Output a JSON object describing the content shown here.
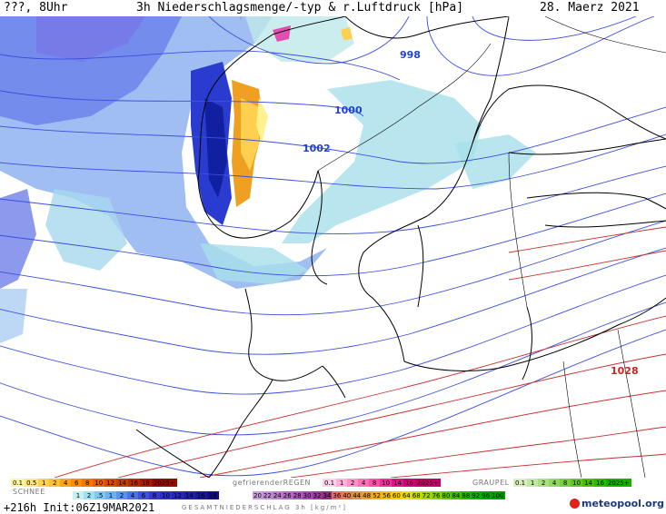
{
  "header": {
    "left": "???, 8Uhr",
    "title": "3h Niederschlagsmenge/-typ & r.Luftdruck [hPa]",
    "date": "28. Maerz 2021"
  },
  "isobar_labels": [
    {
      "text": "998",
      "color": "#2244cc"
    },
    {
      "text": "1000",
      "color": "#2244cc"
    },
    {
      "text": "1002",
      "color": "#2244cc"
    },
    {
      "text": "1028",
      "color": "#cc2222"
    }
  ],
  "legend": {
    "rain_values": [
      "0.1",
      "0.5",
      "1",
      "2",
      "4",
      "6",
      "8",
      "10",
      "12",
      "14",
      "16",
      "18",
      "2025+"
    ],
    "rain_colors": [
      "#fff7a0",
      "#ffe680",
      "#ffd24d",
      "#ffbf33",
      "#ffa31a",
      "#ff8c00",
      "#f07800",
      "#e06400",
      "#d05000",
      "#c04000",
      "#b03000",
      "#a02000",
      "#901000"
    ],
    "freezing_label": "gefrierenderREGEN",
    "freezing_values": [
      "0.1",
      "1",
      "2",
      "4",
      "8",
      "10",
      "14",
      "16",
      "2025+"
    ],
    "freezing_colors": [
      "#ffd0e8",
      "#ffb0d8",
      "#ff90c8",
      "#ff70b8",
      "#ff50a8",
      "#f03098",
      "#e01088",
      "#d00078",
      "#c00068"
    ],
    "graupel_label": "GRAUPEL",
    "graupel_values": [
      "0.1",
      "1",
      "2",
      "4",
      "8",
      "10",
      "14",
      "16",
      "2025+"
    ],
    "graupel_colors": [
      "#d8f0c0",
      "#c0e8a0",
      "#a8e080",
      "#90d860",
      "#78d040",
      "#60c820",
      "#48c000",
      "#30b800",
      "#18b000"
    ],
    "snow_label": "SCHNEE",
    "snow_values": [
      "1",
      "2",
      ".5",
      "1",
      "2",
      "4",
      "6",
      "8",
      "10",
      "12",
      "14",
      "16",
      "18"
    ],
    "snow_colors": [
      "#c8f0f0",
      "#a0e0f0",
      "#80c8f0",
      "#70b0f0",
      "#6090f0",
      "#5070e8",
      "#4050e0",
      "#3838d0",
      "#3030c0",
      "#2828b0",
      "#2020a0",
      "#181890",
      "#101080"
    ],
    "total_values": [
      "20",
      "22",
      "24",
      "26",
      "28",
      "30",
      "32",
      "34",
      "36",
      "40",
      "44",
      "48",
      "52",
      "56",
      "60",
      "64",
      "68",
      "72",
      "76",
      "80",
      "84",
      "88",
      "92",
      "96",
      "100"
    ],
    "total_colors": [
      "#c8a0d8",
      "#c090d0",
      "#b880c8",
      "#b070c0",
      "#a860b8",
      "#a050b0",
      "#984098",
      "#903080",
      "#e07070",
      "#e08050",
      "#e09040",
      "#e8a030",
      "#f0b020",
      "#f0c010",
      "#f8d000",
      "#e8e000",
      "#c8e000",
      "#a8d800",
      "#88d000",
      "#68c800",
      "#48c000",
      "#28b800",
      "#10b000",
      "#00a800",
      "#00a000"
    ],
    "total_label": "GESAMTNIEDERSCHLAG 3h [kg/m²]"
  },
  "footer": {
    "run": "+216h Init:06Z19MAR2021",
    "logo": "meteopool.org"
  }
}
